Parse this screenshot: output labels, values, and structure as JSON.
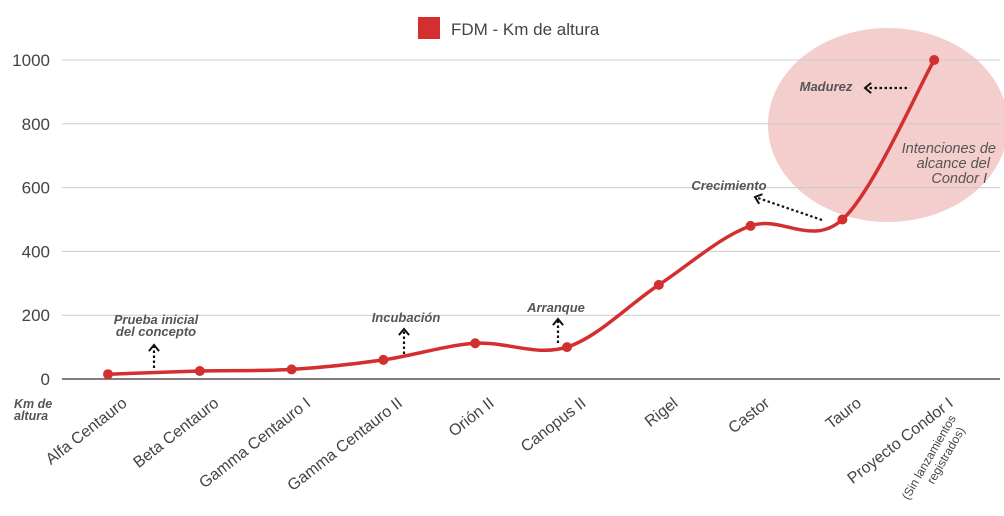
{
  "chart_data": {
    "type": "line",
    "categories": [
      "Alfa Centauro",
      "Beta Centauro",
      "Gamma Centauro I",
      "Gamma Centauro II",
      "Orión II",
      "Canopus II",
      "Rigel",
      "Castor",
      "Tauro",
      "Proyecto Condor I"
    ],
    "category_subtitles": {
      "Proyecto Condor I": [
        "(Sin lanzamientos",
        "registrados)"
      ]
    },
    "series": [
      {
        "name": "FDM - Km de altura",
        "values": [
          15,
          25,
          30,
          60,
          112,
          100,
          295,
          480,
          500,
          1000
        ],
        "color": "#d32f2f"
      }
    ],
    "y_ticks": [
      0,
      200,
      400,
      600,
      800,
      1000
    ],
    "ylim": [
      0,
      1000
    ],
    "ylabel": [
      "Km de",
      "altura"
    ],
    "grid": true,
    "legend_position": "top-center",
    "annotations": [
      {
        "lines": [
          "Prueba inicial",
          "del concepto"
        ],
        "category": "Alfa Centauro"
      },
      {
        "lines": [
          "Incubación"
        ],
        "category": "Gamma Centauro II"
      },
      {
        "lines": [
          "Arranque"
        ],
        "category": "Canopus II"
      },
      {
        "lines": [
          "Crecimiento"
        ],
        "category": "Castor"
      },
      {
        "lines": [
          "Madurez"
        ],
        "category": "Proyecto Condor I"
      }
    ],
    "highlight": {
      "lines": [
        "Intenciones de",
        "alcance del",
        "Condor I"
      ],
      "color": "#f2c4c4"
    }
  }
}
